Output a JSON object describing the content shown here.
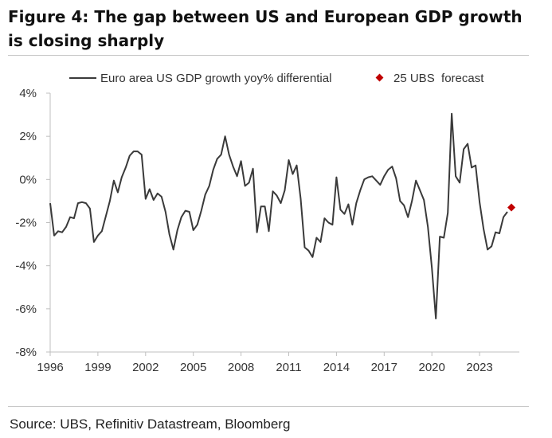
{
  "title": "Figure 4: The gap between US and European GDP growth is closing sharply",
  "source": "Source: UBS, Refinitiv Datastream, Bloomberg",
  "colors": {
    "line": "#3a3a3a",
    "forecast": "#c00000",
    "axis": "#bfbfbf"
  },
  "chart_data": {
    "type": "line",
    "title": "Figure 4: The gap between US and European GDP growth is closing sharply",
    "xlabel": "",
    "ylabel": "",
    "xlim": [
      1996,
      2025.5
    ],
    "ylim": [
      -8,
      4
    ],
    "x_ticks": [
      1996,
      1999,
      2002,
      2005,
      2008,
      2011,
      2014,
      2017,
      2020,
      2023
    ],
    "y_ticks": [
      {
        "value": 4,
        "label": "4%"
      },
      {
        "value": 2,
        "label": "2%"
      },
      {
        "value": 0,
        "label": "0%"
      },
      {
        "value": -2,
        "label": "-2%"
      },
      {
        "value": -4,
        "label": "-4%"
      },
      {
        "value": -6,
        "label": "-6%"
      },
      {
        "value": -8,
        "label": "-8%"
      }
    ],
    "grid": false,
    "legend_position": "top",
    "series": [
      {
        "name": "Euro area US GDP growth yoy% differential",
        "x": [
          1996.0,
          1996.25,
          1996.5,
          1996.75,
          1997.0,
          1997.25,
          1997.5,
          1997.75,
          1998.0,
          1998.25,
          1998.5,
          1998.75,
          1999.0,
          1999.25,
          1999.5,
          1999.75,
          2000.0,
          2000.25,
          2000.5,
          2000.75,
          2001.0,
          2001.25,
          2001.5,
          2001.75,
          2002.0,
          2002.25,
          2002.5,
          2002.75,
          2003.0,
          2003.25,
          2003.5,
          2003.75,
          2004.0,
          2004.25,
          2004.5,
          2004.75,
          2005.0,
          2005.25,
          2005.5,
          2005.75,
          2006.0,
          2006.25,
          2006.5,
          2006.75,
          2007.0,
          2007.25,
          2007.5,
          2007.75,
          2008.0,
          2008.25,
          2008.5,
          2008.75,
          2009.0,
          2009.25,
          2009.5,
          2009.75,
          2010.0,
          2010.25,
          2010.5,
          2010.75,
          2011.0,
          2011.25,
          2011.5,
          2011.75,
          2012.0,
          2012.25,
          2012.5,
          2012.75,
          2013.0,
          2013.25,
          2013.5,
          2013.75,
          2014.0,
          2014.25,
          2014.5,
          2014.75,
          2015.0,
          2015.25,
          2015.5,
          2015.75,
          2016.0,
          2016.25,
          2016.5,
          2016.75,
          2017.0,
          2017.25,
          2017.5,
          2017.75,
          2018.0,
          2018.25,
          2018.5,
          2018.75,
          2019.0,
          2019.25,
          2019.5,
          2019.75,
          2020.0,
          2020.25,
          2020.5,
          2020.75,
          2021.0,
          2021.25,
          2021.5,
          2021.75,
          2022.0,
          2022.25,
          2022.5,
          2022.75,
          2023.0,
          2023.25,
          2023.5,
          2023.75,
          2024.0,
          2024.25,
          2024.5,
          2024.75
        ],
        "y": [
          -1.1,
          -2.6,
          -2.4,
          -2.45,
          -2.2,
          -1.75,
          -1.8,
          -1.1,
          -1.05,
          -1.1,
          -1.35,
          -2.9,
          -2.6,
          -2.4,
          -1.7,
          -1.0,
          -0.05,
          -0.6,
          0.1,
          0.55,
          1.1,
          1.3,
          1.3,
          1.15,
          -0.9,
          -0.45,
          -0.95,
          -0.65,
          -0.8,
          -1.5,
          -2.55,
          -3.25,
          -2.35,
          -1.75,
          -1.45,
          -1.5,
          -2.35,
          -2.1,
          -1.45,
          -0.7,
          -0.3,
          0.45,
          0.95,
          1.15,
          2.0,
          1.15,
          0.6,
          0.15,
          0.85,
          -0.3,
          -0.15,
          0.5,
          -2.45,
          -1.25,
          -1.25,
          -2.4,
          -0.55,
          -0.75,
          -1.1,
          -0.5,
          0.9,
          0.25,
          0.65,
          -0.9,
          -3.15,
          -3.3,
          -3.6,
          -2.7,
          -2.9,
          -1.8,
          -2.0,
          -2.1,
          0.1,
          -1.4,
          -1.6,
          -1.15,
          -2.1,
          -1.1,
          -0.5,
          0.0,
          0.1,
          0.15,
          -0.05,
          -0.25,
          0.15,
          0.45,
          0.6,
          0.05,
          -1.0,
          -1.2,
          -1.75,
          -1.0,
          -0.05,
          -0.5,
          -0.95,
          -2.2,
          -4.1,
          -6.45,
          -2.65,
          -2.7,
          -1.55,
          3.05,
          0.15,
          -0.15,
          1.4,
          1.65,
          0.55,
          0.65,
          -1.05,
          -2.3,
          -3.25,
          -3.1,
          -2.45,
          -2.5,
          -1.75,
          -1.5
        ]
      },
      {
        "name": "25 UBS  forecast",
        "x": [
          2025.0
        ],
        "y": [
          -1.3
        ]
      }
    ]
  }
}
